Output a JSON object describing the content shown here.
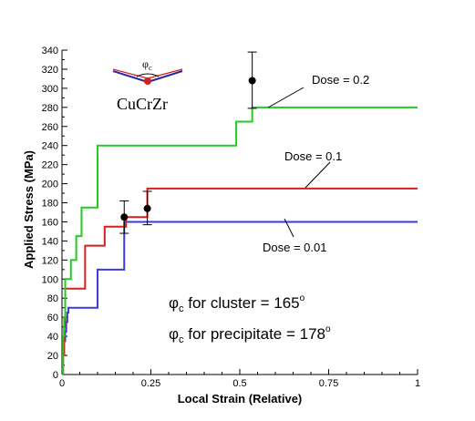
{
  "chart_data": {
    "type": "line",
    "title": "",
    "xlabel": "Local Strain (Relative)",
    "ylabel": "Applied Stress (MPa)",
    "xlim": [
      0,
      1
    ],
    "ylim": [
      0,
      340
    ],
    "xticks": [
      0,
      0.25,
      0.5,
      0.75,
      1
    ],
    "xtick_labels": [
      "0",
      "0.25",
      "0.5",
      "0.75",
      "1"
    ],
    "yticks": [
      0,
      20,
      40,
      60,
      80,
      100,
      120,
      140,
      160,
      180,
      200,
      220,
      240,
      260,
      280,
      300,
      320,
      340
    ],
    "ytick_labels": [
      "0",
      "20",
      "40",
      "60",
      "80",
      "100",
      "120",
      "140",
      "160",
      "180",
      "200",
      "220",
      "240",
      "260",
      "280",
      "300",
      "320",
      "340"
    ],
    "grid": false,
    "series": [
      {
        "name": "Dose = 0.01",
        "color": "#3a3ae0",
        "step": true,
        "x": [
          0,
          0.003,
          0.006,
          0.009,
          0.012,
          0.015,
          0.018,
          0.022,
          0.1,
          0.175,
          1.0
        ],
        "y": [
          0,
          20,
          35,
          45,
          55,
          65,
          70,
          70,
          110,
          160,
          160
        ]
      },
      {
        "name": "Dose = 0.1",
        "color": "#d42020",
        "step": true,
        "x": [
          0,
          0.003,
          0.006,
          0.009,
          0.05,
          0.065,
          0.12,
          0.18,
          0.24,
          1.0
        ],
        "y": [
          0,
          20,
          50,
          90,
          90,
          135,
          155,
          165,
          195,
          195
        ]
      },
      {
        "name": "Dose = 0.2",
        "color": "#22cc22",
        "step": true,
        "x": [
          0,
          0.003,
          0.006,
          0.009,
          0.025,
          0.04,
          0.055,
          0.1,
          0.49,
          0.535,
          1.0
        ],
        "y": [
          0,
          40,
          60,
          100,
          120,
          145,
          175,
          240,
          265,
          280,
          280
        ]
      }
    ],
    "error_points": [
      {
        "x": 0.175,
        "y": 165,
        "ylow": 148,
        "yhigh": 182
      },
      {
        "x": 0.24,
        "y": 174,
        "ylow": 157,
        "yhigh": 192
      },
      {
        "x": 0.535,
        "y": 308,
        "ylow": 279,
        "yhigh": 338
      }
    ],
    "series_labels": [
      {
        "text": "Dose = 0.2"
      },
      {
        "text": "Dose = 0.1"
      },
      {
        "text": "Dose = 0.01"
      }
    ],
    "annotations": {
      "material": "CuCrZr",
      "phi_symbol": "φ",
      "phi_sub": "c",
      "cluster_text": " for cluster = 165",
      "precipitate_text": " for precipitate = 178",
      "degree": "o"
    }
  }
}
